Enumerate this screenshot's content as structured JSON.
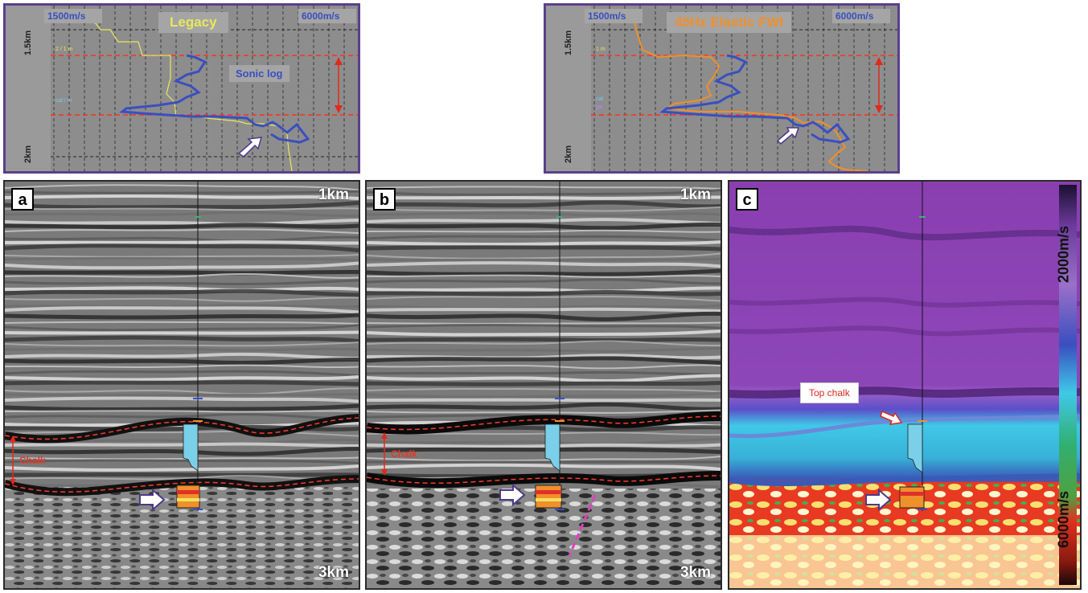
{
  "top_left": {
    "title": "Legacy",
    "scale_min": "1500m/s",
    "scale_max": "6000m/s",
    "depth_top": "1.5km",
    "depth_bottom": "2km",
    "annotation": "Sonic log",
    "colors": {
      "legacy_curve": "#e8e85a",
      "sonic_curve": "#3a4fbf",
      "title": "#e8e85a"
    }
  },
  "top_right": {
    "title": "45Hz Elastic FWI",
    "scale_min": "1500m/s",
    "scale_max": "6000m/s",
    "depth_top": "1.5km",
    "depth_bottom": "2km",
    "colors": {
      "fwi_curve": "#f0902a",
      "sonic_curve": "#3a4fbf",
      "title": "#f0902a"
    }
  },
  "panel_a": {
    "letter": "a",
    "depth_top": "1km",
    "depth_bottom": "3km",
    "chalk_label": "Chalk"
  },
  "panel_b": {
    "letter": "b",
    "depth_top": "1km",
    "depth_bottom": "3km",
    "chalk_label": "Chalk"
  },
  "panel_c": {
    "letter": "c",
    "callout": "Top chalk",
    "scale_top": "2000m/s",
    "scale_bottom": "6000m/s"
  },
  "colors": {
    "frame": "#5b3f8c",
    "horizon_dash": "#ff3a2a",
    "arrow": "#ffffff"
  }
}
